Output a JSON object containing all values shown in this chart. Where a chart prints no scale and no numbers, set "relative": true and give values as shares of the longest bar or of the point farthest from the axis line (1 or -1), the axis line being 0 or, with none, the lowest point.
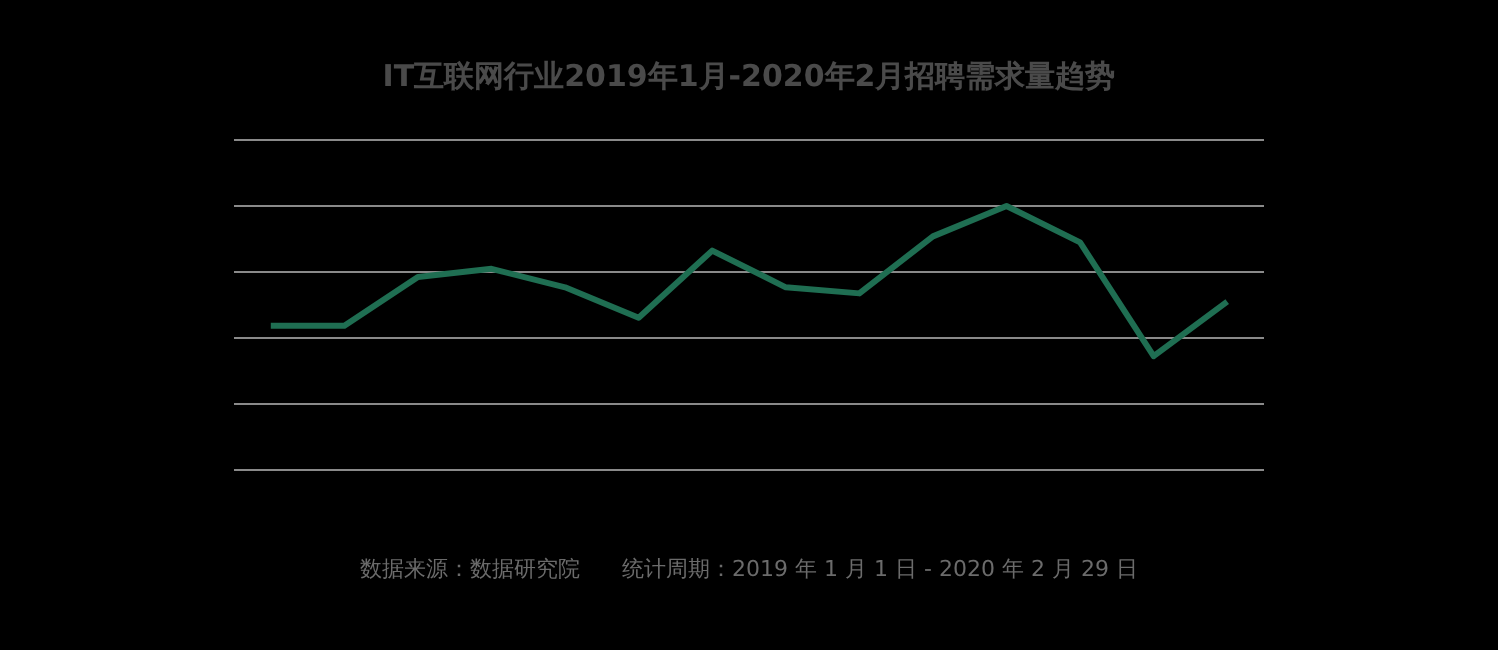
{
  "chart_data": {
    "type": "line",
    "title": "IT互联网行业2019年1月-2020年2月招聘需求量趋势",
    "categories": [
      null,
      null,
      null,
      null,
      null,
      null,
      null,
      null,
      null,
      null,
      null,
      null,
      null,
      null
    ],
    "relative": true,
    "series": [
      {
        "color": "#1f6e52",
        "values": [
          0.546,
          0.546,
          0.731,
          0.762,
          0.692,
          0.577,
          0.831,
          0.692,
          0.669,
          0.885,
          1,
          0.862,
          0.431,
          0.638
        ]
      }
    ],
    "grid": "y",
    "legend": false,
    "marker": "none",
    "line_style": "solid",
    "annotations": [
      "数据来源：数据研究院      统计周期：2019 年 1 月 1 日 - 2020 年 2 月 29 日"
    ]
  }
}
